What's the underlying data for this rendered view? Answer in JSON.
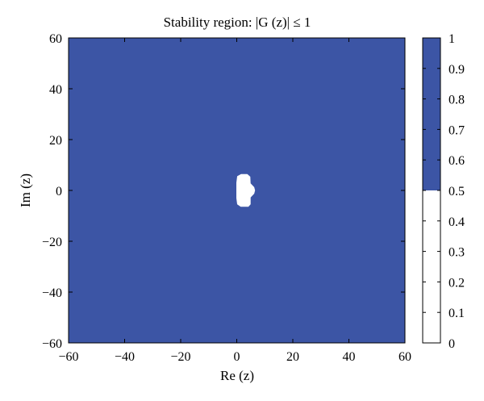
{
  "chart_data": {
    "type": "heatmap",
    "title": "Stability region: |G (z)| ≤ 1",
    "xlabel": "Re (z)",
    "ylabel": "Im (z)",
    "xlim": [
      -60,
      60
    ],
    "ylim": [
      -60,
      60
    ],
    "xticks": [
      "−60",
      "−40",
      "−20",
      "0",
      "20",
      "40",
      "60"
    ],
    "yticks": [
      "−60",
      "−40",
      "−20",
      "0",
      "20",
      "40",
      "60"
    ],
    "stable_value": 1,
    "unstable_value": 0,
    "unstable_region_outline": [
      [
        0.3,
        5.5
      ],
      [
        1.6,
        6.3
      ],
      [
        3.7,
        6.3
      ],
      [
        4.7,
        5.3
      ],
      [
        4.8,
        2.7
      ],
      [
        6.1,
        1.2
      ],
      [
        6.4,
        0
      ],
      [
        6.1,
        -1.2
      ],
      [
        4.8,
        -2.7
      ],
      [
        4.8,
        -5.4
      ],
      [
        4.1,
        -6.3
      ],
      [
        1.5,
        -6.3
      ],
      [
        0.3,
        -5.4
      ],
      [
        0,
        -3.0
      ],
      [
        0,
        3.0
      ]
    ],
    "grid": false,
    "colorbar": {
      "range": [
        0,
        1
      ],
      "ticks": [
        "0",
        "0.1",
        "0.2",
        "0.3",
        "0.4",
        "0.5",
        "0.6",
        "0.7",
        "0.8",
        "0.9",
        "1"
      ],
      "threshold": 0.5
    },
    "colors": {
      "stable": "#3c55a5",
      "unstable": "#ffffff"
    }
  }
}
